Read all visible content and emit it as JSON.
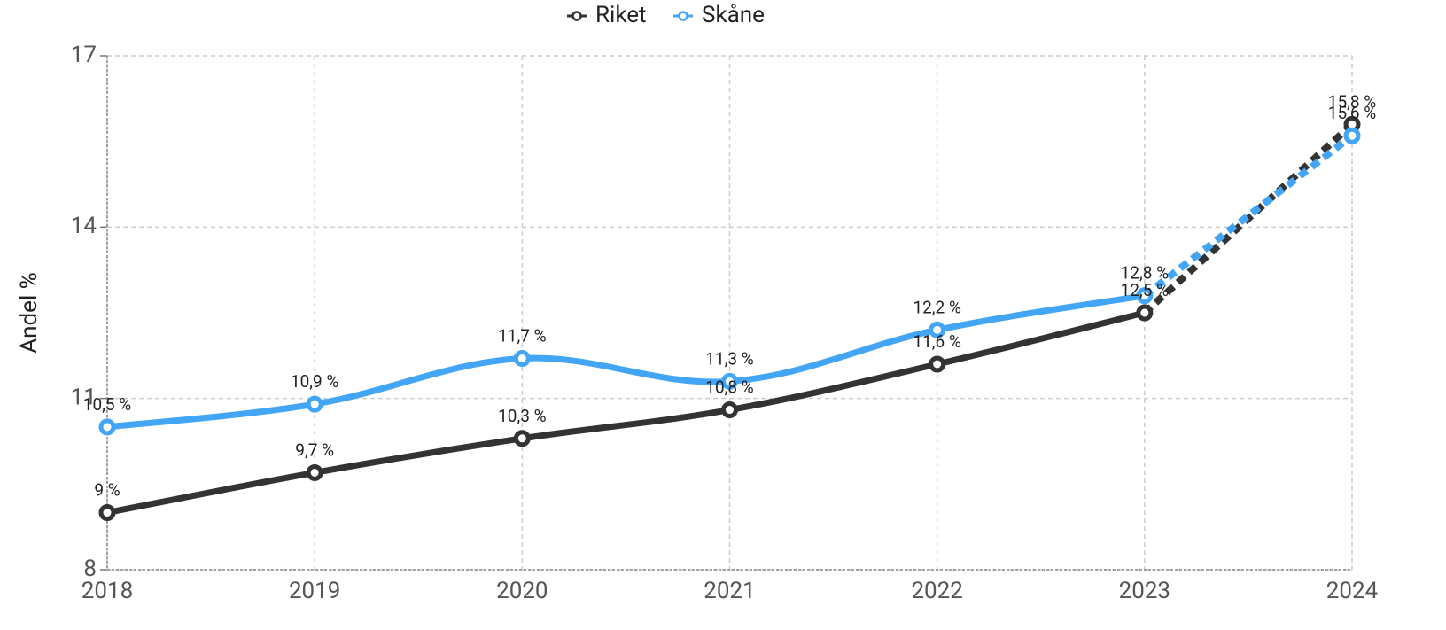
{
  "chart_data": {
    "type": "line",
    "y_label": "Andel %",
    "categories": [
      "2018",
      "2019",
      "2020",
      "2021",
      "2022",
      "2023",
      "2024"
    ],
    "series": [
      {
        "name": "Riket",
        "color": "#333333",
        "values": [
          9,
          9.7,
          10.3,
          10.8,
          11.6,
          12.5,
          15.8
        ],
        "value_labels": [
          "9 %",
          "9,7 %",
          "10,3 %",
          "10,8 %",
          "11,6 %",
          "12,5 %",
          "15,8 %"
        ]
      },
      {
        "name": "Skåne",
        "color": "#42a5f5",
        "values": [
          10.5,
          10.9,
          11.7,
          11.3,
          12.2,
          12.8,
          15.6
        ],
        "value_labels": [
          "10,5 %",
          "10,9 %",
          "11,7 %",
          "11,3 %",
          "12,2 %",
          "12,8 %",
          "15,6 %"
        ]
      }
    ],
    "ylim": [
      8,
      17
    ],
    "yticks": [
      8,
      11,
      14,
      17
    ],
    "grid": true,
    "dashed_segments": [
      5
    ]
  }
}
